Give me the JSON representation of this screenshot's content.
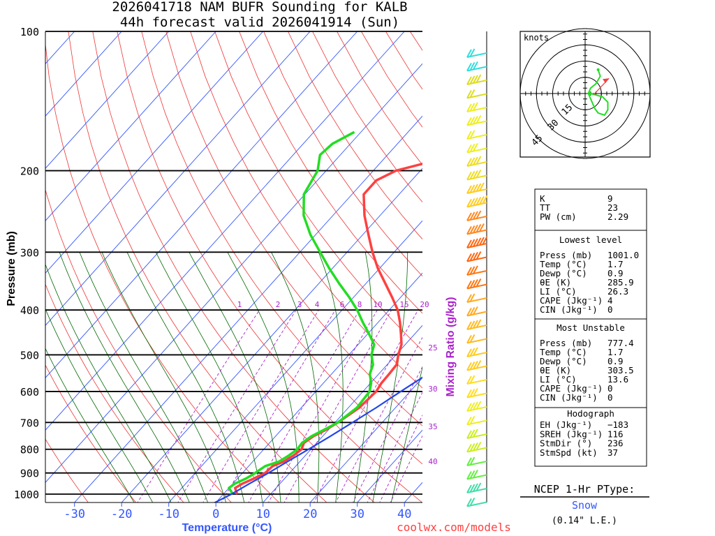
{
  "title": {
    "line1": "2026041718 NAM BUFR Sounding for KALB",
    "line2": "44h forecast valid 2026041914 (Sun)"
  },
  "credit": "coolwx.com/models",
  "colors": {
    "temp": "#ff4040",
    "dewp": "#22dd22",
    "parcel": "#2244ee",
    "isotherm": "#3355ff",
    "dry_adiabat": "#ee3333",
    "moist_adiabat": "#006600",
    "mixing": "#aa22cc",
    "axis_label": "#3355ff"
  },
  "chart_data": {
    "type": "line",
    "subtype": "skew-T log-P",
    "xlabel": "Temperature (°C)",
    "ylabel": "Pressure (mb)",
    "right_label": "Mixing Ratio (g/kg)",
    "pressure_range": [
      1050,
      100
    ],
    "pressure_ticks": [
      100,
      200,
      300,
      400,
      500,
      600,
      700,
      800,
      900,
      1000
    ],
    "temp_range": [
      -40,
      42
    ],
    "temp_ticks": [
      -30,
      -20,
      -10,
      0,
      10,
      20,
      30,
      40
    ],
    "mixing_ratio_labels": [
      "1",
      "2",
      "3",
      "4",
      "6",
      "8",
      "10",
      "15",
      "20",
      "25",
      "30",
      "35",
      "40"
    ],
    "series": [
      {
        "name": "Temperature",
        "points": [
          [
            1000,
            2.9
          ],
          [
            970,
            1.3
          ],
          [
            950,
            2.0
          ],
          [
            925,
            3.5
          ],
          [
            900,
            4.8
          ],
          [
            870,
            5.1
          ],
          [
            850,
            6.6
          ],
          [
            825,
            7.5
          ],
          [
            800,
            8.0
          ],
          [
            775,
            7.3
          ],
          [
            750,
            8.0
          ],
          [
            725,
            9.5
          ],
          [
            700,
            10.6
          ],
          [
            650,
            12.3
          ],
          [
            600,
            12.8
          ],
          [
            575,
            12.3
          ],
          [
            550,
            12.2
          ],
          [
            525,
            12.0
          ],
          [
            500,
            10.5
          ],
          [
            475,
            9.2
          ],
          [
            450,
            7.0
          ],
          [
            425,
            4.6
          ],
          [
            400,
            1.8
          ],
          [
            375,
            -1.9
          ],
          [
            350,
            -6.0
          ],
          [
            325,
            -10.4
          ],
          [
            300,
            -14.6
          ],
          [
            275,
            -18.8
          ],
          [
            250,
            -23.3
          ],
          [
            225,
            -27.5
          ],
          [
            210,
            -27.5
          ],
          [
            200,
            -25.2
          ],
          [
            190,
            -18.7
          ],
          [
            180,
            -14.6
          ],
          [
            170,
            -11.6
          ],
          [
            160,
            -6.6
          ],
          [
            150,
            -1.9
          ],
          [
            140,
            1.1
          ],
          [
            130,
            3.4
          ],
          [
            120,
            6.9
          ],
          [
            110,
            11.0
          ],
          [
            105,
            10.4
          ],
          [
            100,
            9.0
          ]
        ]
      },
      {
        "name": "Dewpoint",
        "points": [
          [
            1000,
            2.0
          ],
          [
            970,
            0.0
          ],
          [
            950,
            0.4
          ],
          [
            925,
            1.8
          ],
          [
            900,
            2.7
          ],
          [
            870,
            3.5
          ],
          [
            850,
            5.6
          ],
          [
            825,
            6.5
          ],
          [
            800,
            7.1
          ],
          [
            775,
            6.9
          ],
          [
            750,
            7.6
          ],
          [
            725,
            9.1
          ],
          [
            700,
            10.6
          ],
          [
            650,
            11.8
          ],
          [
            600,
            11.4
          ],
          [
            575,
            10.1
          ],
          [
            550,
            8.1
          ],
          [
            525,
            7.0
          ],
          [
            500,
            4.8
          ],
          [
            475,
            3.4
          ],
          [
            450,
            0.2
          ],
          [
            425,
            -3.3
          ],
          [
            400,
            -6.8
          ],
          [
            375,
            -11.0
          ],
          [
            350,
            -15.8
          ],
          [
            325,
            -20.7
          ],
          [
            300,
            -25.7
          ],
          [
            275,
            -31.1
          ],
          [
            250,
            -36.2
          ],
          [
            225,
            -40.2
          ],
          [
            200,
            -41.8
          ],
          [
            185,
            -44.3
          ],
          [
            175,
            -43.8
          ],
          [
            165,
            -41.4
          ]
        ]
      },
      {
        "name": "Parcel",
        "points": [
          [
            1050,
            -0.5
          ],
          [
            1000,
            1.7
          ],
          [
            950,
            3.5
          ],
          [
            900,
            5.5
          ],
          [
            850,
            7.4
          ],
          [
            800,
            9.5
          ],
          [
            750,
            11.6
          ],
          [
            700,
            13.7
          ],
          [
            650,
            15.9
          ],
          [
            600,
            18.0
          ],
          [
            550,
            20.4
          ],
          [
            500,
            22.6
          ],
          [
            450,
            25.1
          ],
          [
            400,
            27.5
          ],
          [
            350,
            30.2
          ],
          [
            300,
            32.8
          ],
          [
            275,
            34.1
          ]
        ]
      }
    ]
  },
  "hodograph": {
    "units_label": "knots",
    "ring_labels": [
      "15",
      "30",
      "45"
    ],
    "trace_knots": [
      [
        5,
        0
      ],
      [
        16,
        -3
      ],
      [
        21,
        -8
      ],
      [
        21,
        -15
      ],
      [
        18,
        -20
      ],
      [
        12,
        -18
      ],
      [
        9,
        -14
      ],
      [
        3,
        0
      ],
      [
        5,
        5
      ],
      [
        10,
        9
      ],
      [
        14,
        16
      ],
      [
        12,
        22
      ]
    ],
    "storm_motion_arrow": [
      [
        8,
        -1
      ],
      [
        22,
        14
      ]
    ]
  },
  "stats": {
    "top": [
      {
        "label": "K",
        "value": "9"
      },
      {
        "label": "TT",
        "value": "23"
      },
      {
        "label": "PW (cm)",
        "value": "2.29"
      }
    ],
    "lowest": {
      "title": "Lowest level",
      "rows": [
        {
          "label": "Press (mb)",
          "value": "1001.0"
        },
        {
          "label": "Temp (°C)",
          "value": "1.7"
        },
        {
          "label": "Dewp (°C)",
          "value": "0.9"
        },
        {
          "label": "θE (K)",
          "value": "285.9"
        },
        {
          "label": "LI (°C)",
          "value": "26.3"
        },
        {
          "label": "CAPE (Jkg⁻¹)",
          "value": "4"
        },
        {
          "label": "CIN (Jkg⁻¹)",
          "value": "0"
        }
      ]
    },
    "unstable": {
      "title": "Most Unstable",
      "rows": [
        {
          "label": "Press (mb)",
          "value": "777.4"
        },
        {
          "label": "Temp (°C)",
          "value": "1.7"
        },
        {
          "label": "Dewp (°C)",
          "value": "0.9"
        },
        {
          "label": "θE (K)",
          "value": "303.5"
        },
        {
          "label": "LI (°C)",
          "value": "13.6"
        },
        {
          "label": "CAPE (Jkg⁻¹)",
          "value": "0"
        },
        {
          "label": "CIN (Jkg⁻¹)",
          "value": "0"
        }
      ]
    },
    "hodo": {
      "title": "Hodograph",
      "rows": [
        {
          "label": "EH (Jkg⁻¹)",
          "value": "−183"
        },
        {
          "label": "SREH (Jkg⁻¹)",
          "value": "116"
        },
        {
          "label": "StmDir (°)",
          "value": "236"
        },
        {
          "label": "StmSpd (kt)",
          "value": "37"
        }
      ]
    }
  },
  "ptype": {
    "title": "NCEP 1-Hr PType:",
    "value": "Snow",
    "amount": "(0.14\" L.E.)"
  }
}
